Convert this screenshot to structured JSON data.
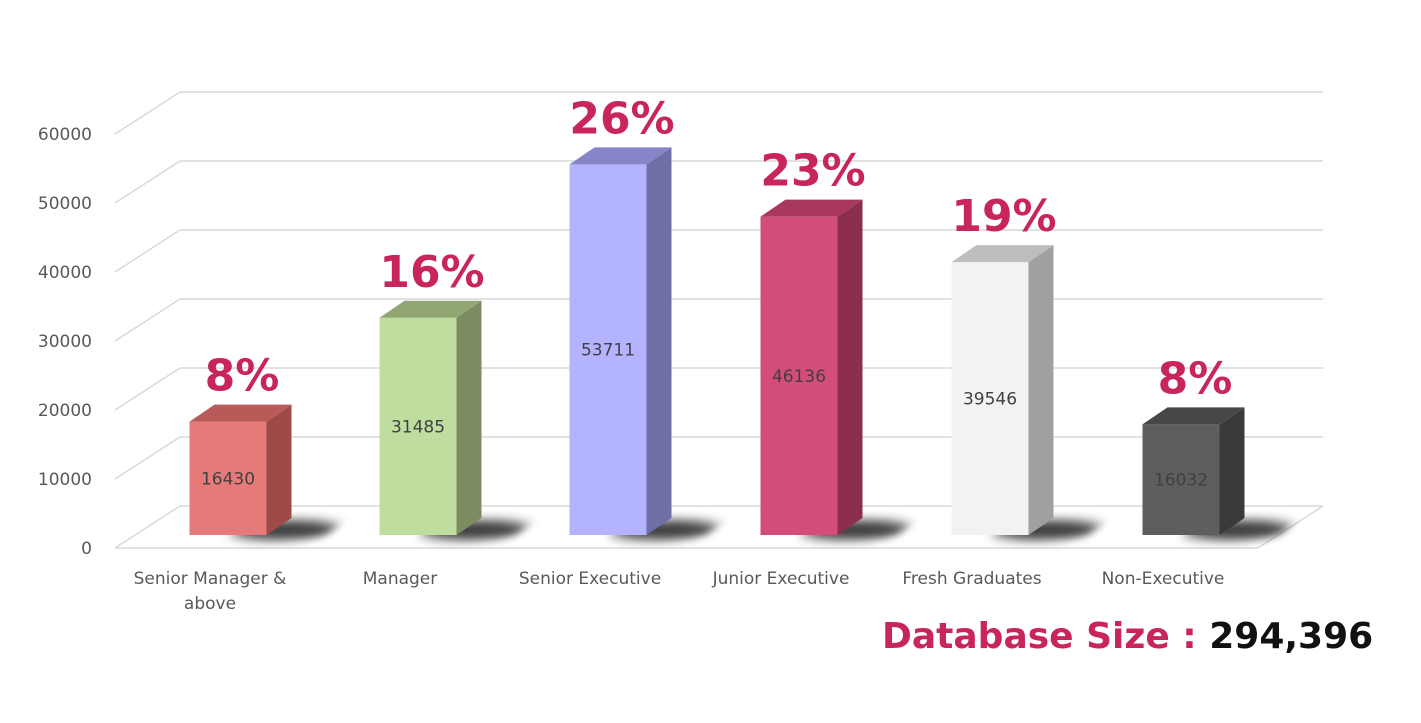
{
  "chart_data": {
    "type": "bar",
    "categories": [
      "Senior Manager & above",
      "Manager",
      "Senior Executive",
      "Junior Executive",
      "Fresh Graduates",
      "Non-Executive"
    ],
    "category_lines": [
      [
        "Senior Manager &",
        "above"
      ],
      [
        "Manager"
      ],
      [
        "Senior Executive"
      ],
      [
        "Junior Executive"
      ],
      [
        "Fresh Graduates"
      ],
      [
        "Non-Executive"
      ]
    ],
    "values": [
      16430,
      31485,
      53711,
      46136,
      39546,
      16032
    ],
    "value_labels": [
      "16430",
      "31485",
      "53711",
      "46136",
      "39546",
      "16032"
    ],
    "percent_labels": [
      "8%",
      "16%",
      "26%",
      "23%",
      "19%",
      "8%"
    ],
    "ylim": [
      0,
      60000
    ],
    "yticks": [
      0,
      10000,
      20000,
      30000,
      40000,
      50000,
      60000
    ],
    "ytick_labels": [
      "0",
      "10000",
      "20000",
      "30000",
      "40000",
      "50000",
      "60000"
    ],
    "grid": true,
    "style": "3d-column",
    "colors": [
      {
        "front": "#e57a78",
        "side": "#9e4a49",
        "top": "#b85a58"
      },
      {
        "front": "#c0dda0",
        "side": "#7c8c62",
        "top": "#92a673"
      },
      {
        "front": "#b3b3ff",
        "side": "#6f6fa8",
        "top": "#8585c7"
      },
      {
        "front": "#d24e78",
        "side": "#8c2e4d",
        "top": "#a8385c"
      },
      {
        "front": "#f2f2f2",
        "side": "#a0a0a0",
        "top": "#bdbdbd"
      },
      {
        "front": "#5e5e5e",
        "side": "#3a3a3a",
        "top": "#474747"
      }
    ],
    "percent_color": "#c8255c",
    "value_label_color": "#404040"
  },
  "footer": {
    "label": "Database Size :",
    "value": "294,396"
  }
}
